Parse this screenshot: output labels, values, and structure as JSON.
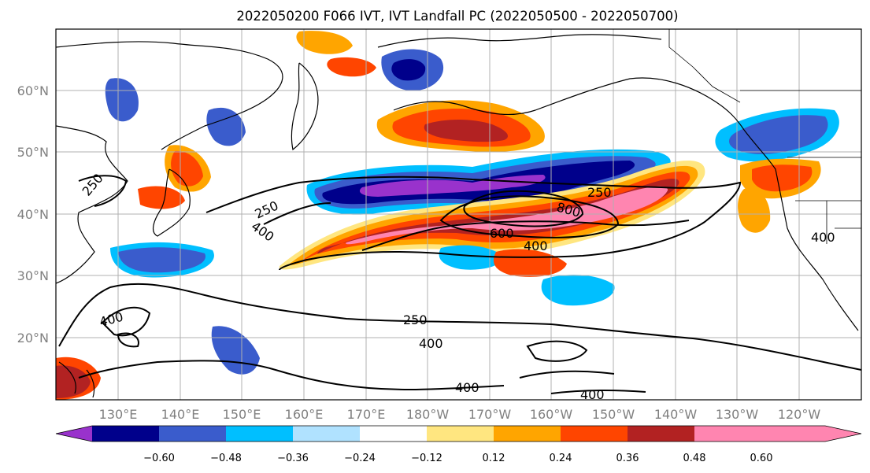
{
  "title": "2022050200 F066 IVT, IVT Landfall PC (2022050500 - 2022050700)",
  "map": {
    "lon_ticks": [
      "130°E",
      "140°E",
      "150°E",
      "160°E",
      "170°E",
      "180°W",
      "170°W",
      "160°W",
      "150°W",
      "140°W",
      "130°W",
      "120°W"
    ],
    "lat_ticks": [
      "60°N",
      "50°N",
      "40°N",
      "30°N",
      "20°N"
    ],
    "ivt_contour_labels": [
      "250",
      "400",
      "250",
      "400",
      "250",
      "800",
      "600",
      "400",
      "400",
      "250",
      "400",
      "400",
      "400"
    ]
  },
  "colorbar": {
    "ticks": [
      "−0.60",
      "−0.48",
      "−0.36",
      "−0.24",
      "−0.12",
      "0.12",
      "0.24",
      "0.36",
      "0.48",
      "0.60"
    ],
    "colors": [
      "#9932cc",
      "#00008b",
      "#3a5ccc",
      "#00bfff",
      "#b0e2ff",
      "#ffffff",
      "#ffe680",
      "#ffa500",
      "#ff4500",
      "#b22222",
      "#ff85b0"
    ]
  },
  "colors": {
    "pos_strong": "#ff85b0",
    "pos_high": "#b22222",
    "pos_mid": "#ff4500",
    "pos_low": "#ffa500",
    "pos_weak": "#ffe680",
    "neg_weak": "#b0e2ff",
    "neg_low": "#00bfff",
    "neg_mid": "#3a5ccc",
    "neg_high": "#00008b",
    "neg_strong": "#9932cc"
  }
}
